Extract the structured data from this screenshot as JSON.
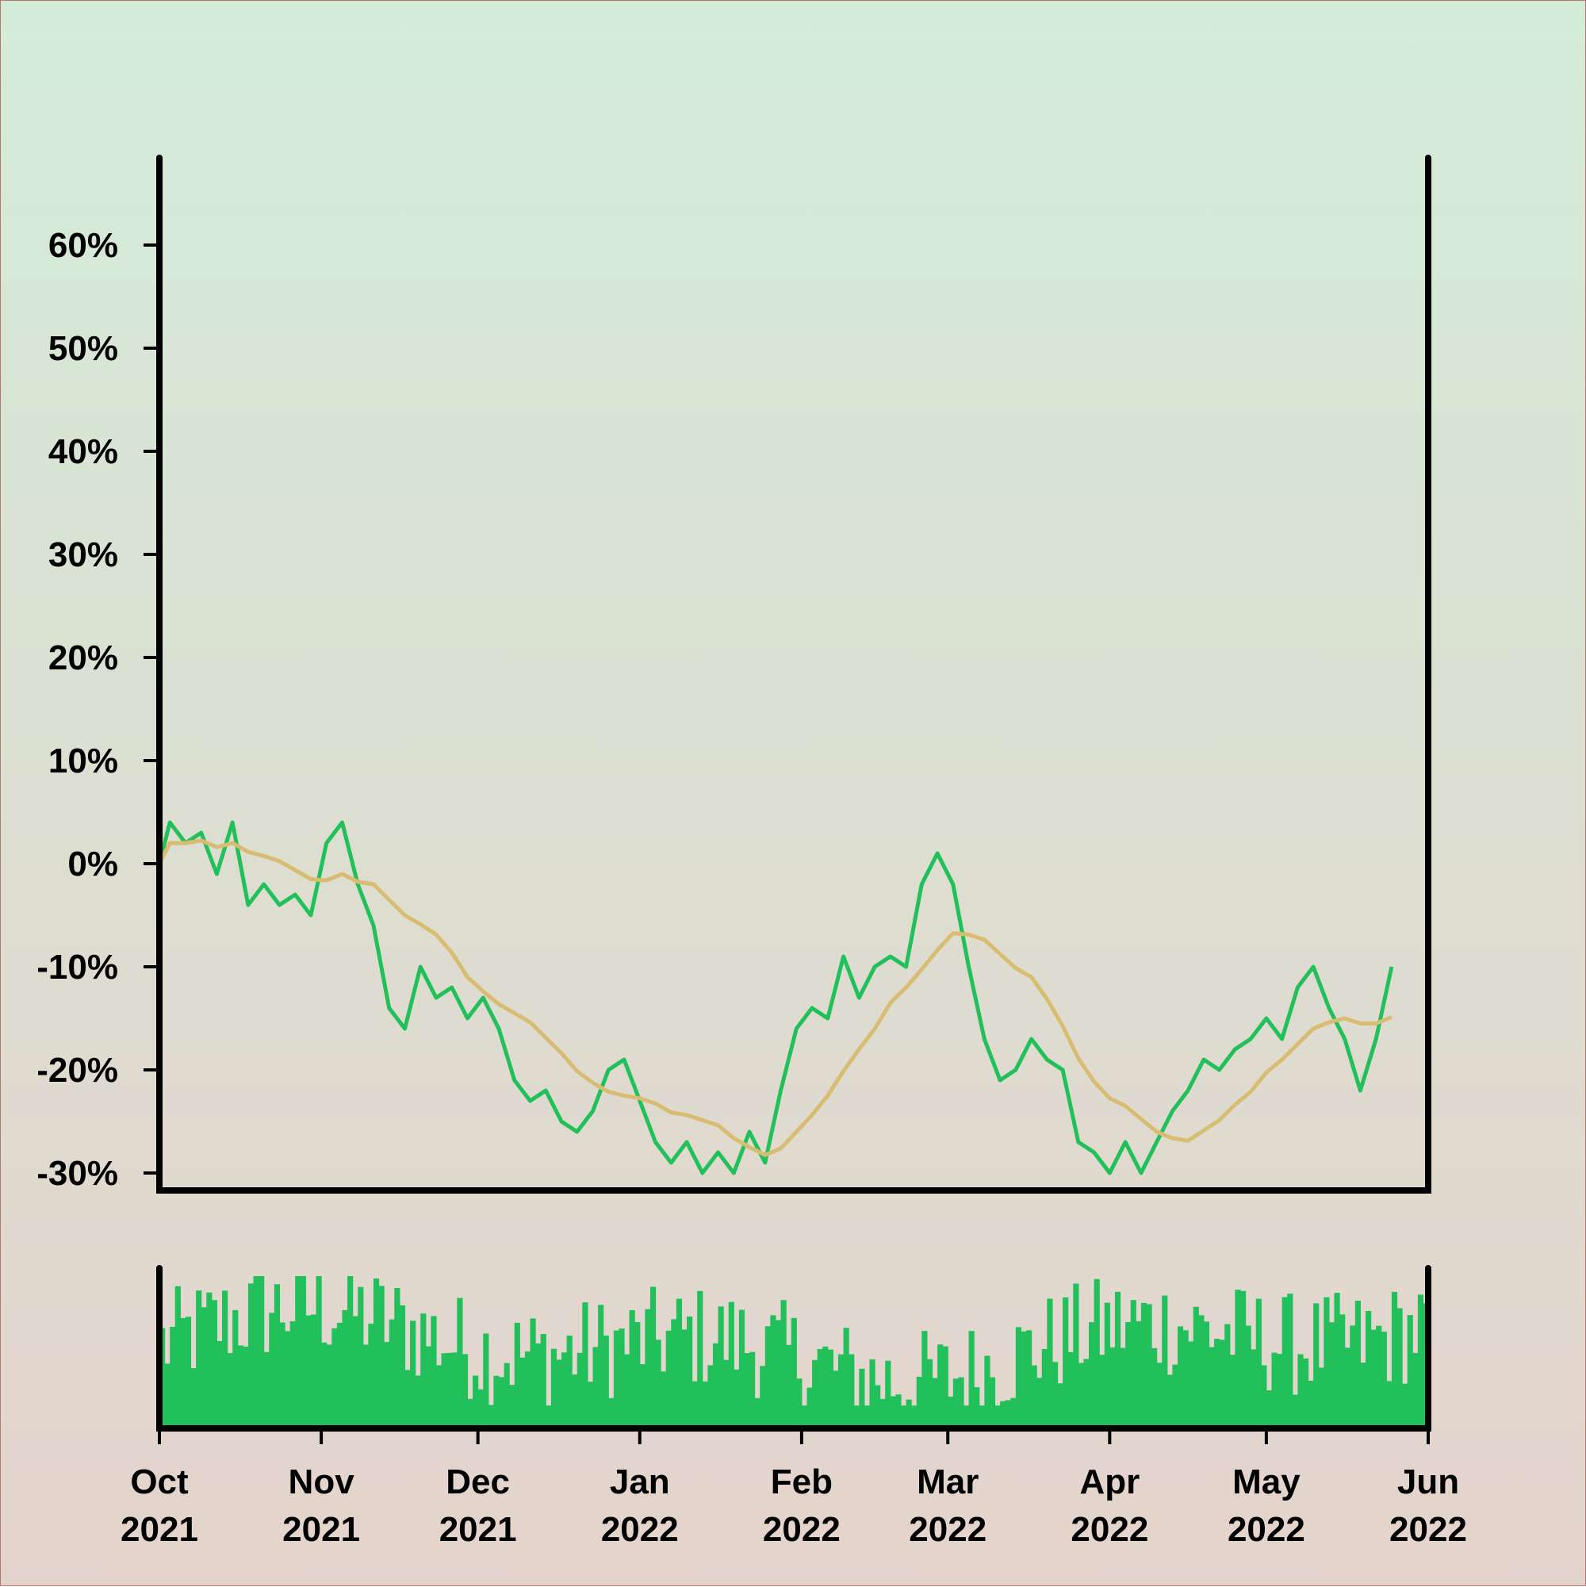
{
  "chart_data": {
    "type": "line",
    "title": "",
    "xlabel": "",
    "ylabel": "",
    "x_range": [
      "2021-10-01",
      "2022-06-01"
    ],
    "ylim": [
      -30,
      65
    ],
    "y_ticks": [
      -30,
      -20,
      -10,
      0,
      10,
      20,
      30,
      40,
      50,
      60
    ],
    "y_tick_labels": [
      "-30%",
      "-20%",
      "-10%",
      "0%",
      "10%",
      "20%",
      "30%",
      "40%",
      "50%",
      "60%"
    ],
    "x_ticks": [
      {
        "date": "2021-10-01",
        "label_month": "Oct",
        "label_year": "2021"
      },
      {
        "date": "2021-11-01",
        "label_month": "Nov",
        "label_year": "2021"
      },
      {
        "date": "2021-12-01",
        "label_month": "Dec",
        "label_year": "2021"
      },
      {
        "date": "2022-01-01",
        "label_month": "Jan",
        "label_year": "2022"
      },
      {
        "date": "2022-02-01",
        "label_month": "Feb",
        "label_year": "2022"
      },
      {
        "date": "2022-03-01",
        "label_month": "Mar",
        "label_year": "2022"
      },
      {
        "date": "2022-04-01",
        "label_month": "Apr",
        "label_year": "2022"
      },
      {
        "date": "2022-05-01",
        "label_month": "May",
        "label_year": "2022"
      },
      {
        "date": "2022-06-01",
        "label_month": "Jun",
        "label_year": "2022"
      }
    ],
    "grid": false,
    "legend": "none",
    "series": [
      {
        "role": "return",
        "color": "#22c05a",
        "points": [
          [
            "2021-10-01",
            0
          ],
          [
            "2021-10-03",
            4
          ],
          [
            "2021-10-06",
            2
          ],
          [
            "2021-10-09",
            3
          ],
          [
            "2021-10-12",
            -1
          ],
          [
            "2021-10-15",
            4
          ],
          [
            "2021-10-18",
            -4
          ],
          [
            "2021-10-21",
            -2
          ],
          [
            "2021-10-24",
            -4
          ],
          [
            "2021-10-27",
            -3
          ],
          [
            "2021-10-30",
            -5
          ],
          [
            "2021-11-02",
            2
          ],
          [
            "2021-11-05",
            4
          ],
          [
            "2021-11-08",
            -2
          ],
          [
            "2021-11-11",
            -6
          ],
          [
            "2021-11-14",
            -14
          ],
          [
            "2021-11-17",
            -16
          ],
          [
            "2021-11-20",
            -10
          ],
          [
            "2021-11-23",
            -13
          ],
          [
            "2021-11-26",
            -12
          ],
          [
            "2021-11-29",
            -15
          ],
          [
            "2021-12-02",
            -13
          ],
          [
            "2021-12-05",
            -16
          ],
          [
            "2021-12-08",
            -21
          ],
          [
            "2021-12-11",
            -23
          ],
          [
            "2021-12-14",
            -22
          ],
          [
            "2021-12-17",
            -25
          ],
          [
            "2021-12-20",
            -26
          ],
          [
            "2021-12-23",
            -24
          ],
          [
            "2021-12-26",
            -20
          ],
          [
            "2021-12-29",
            -19
          ],
          [
            "2022-01-01",
            -23
          ],
          [
            "2022-01-04",
            -27
          ],
          [
            "2022-01-07",
            -29
          ],
          [
            "2022-01-10",
            -27
          ],
          [
            "2022-01-13",
            -30
          ],
          [
            "2022-01-16",
            -28
          ],
          [
            "2022-01-19",
            -30
          ],
          [
            "2022-01-22",
            -26
          ],
          [
            "2022-01-25",
            -29
          ],
          [
            "2022-01-28",
            -22
          ],
          [
            "2022-01-31",
            -16
          ],
          [
            "2022-02-03",
            -14
          ],
          [
            "2022-02-06",
            -15
          ],
          [
            "2022-02-09",
            -9
          ],
          [
            "2022-02-12",
            -13
          ],
          [
            "2022-02-15",
            -10
          ],
          [
            "2022-02-18",
            -9
          ],
          [
            "2022-02-21",
            -10
          ],
          [
            "2022-02-24",
            -2
          ],
          [
            "2022-02-27",
            1
          ],
          [
            "2022-03-02",
            -2
          ],
          [
            "2022-03-05",
            -10
          ],
          [
            "2022-03-08",
            -17
          ],
          [
            "2022-03-11",
            -21
          ],
          [
            "2022-03-14",
            -20
          ],
          [
            "2022-03-17",
            -17
          ],
          [
            "2022-03-20",
            -19
          ],
          [
            "2022-03-23",
            -20
          ],
          [
            "2022-03-26",
            -27
          ],
          [
            "2022-03-29",
            -28
          ],
          [
            "2022-04-01",
            -30
          ],
          [
            "2022-04-04",
            -27
          ],
          [
            "2022-04-07",
            -30
          ],
          [
            "2022-04-10",
            -27
          ],
          [
            "2022-04-13",
            -24
          ],
          [
            "2022-04-16",
            -22
          ],
          [
            "2022-04-19",
            -19
          ],
          [
            "2022-04-22",
            -20
          ],
          [
            "2022-04-25",
            -18
          ],
          [
            "2022-04-28",
            -17
          ],
          [
            "2022-05-01",
            -15
          ],
          [
            "2022-05-04",
            -17
          ],
          [
            "2022-05-07",
            -12
          ],
          [
            "2022-05-10",
            -10
          ],
          [
            "2022-05-13",
            -14
          ],
          [
            "2022-05-16",
            -17
          ],
          [
            "2022-05-19",
            -22
          ],
          [
            "2022-05-22",
            -17
          ],
          [
            "2022-05-25",
            -10
          ]
        ]
      },
      {
        "role": "moving-average",
        "color": "#d8bc72",
        "points": []
      }
    ],
    "volume": {
      "color": "#22c05a",
      "values": []
    }
  }
}
